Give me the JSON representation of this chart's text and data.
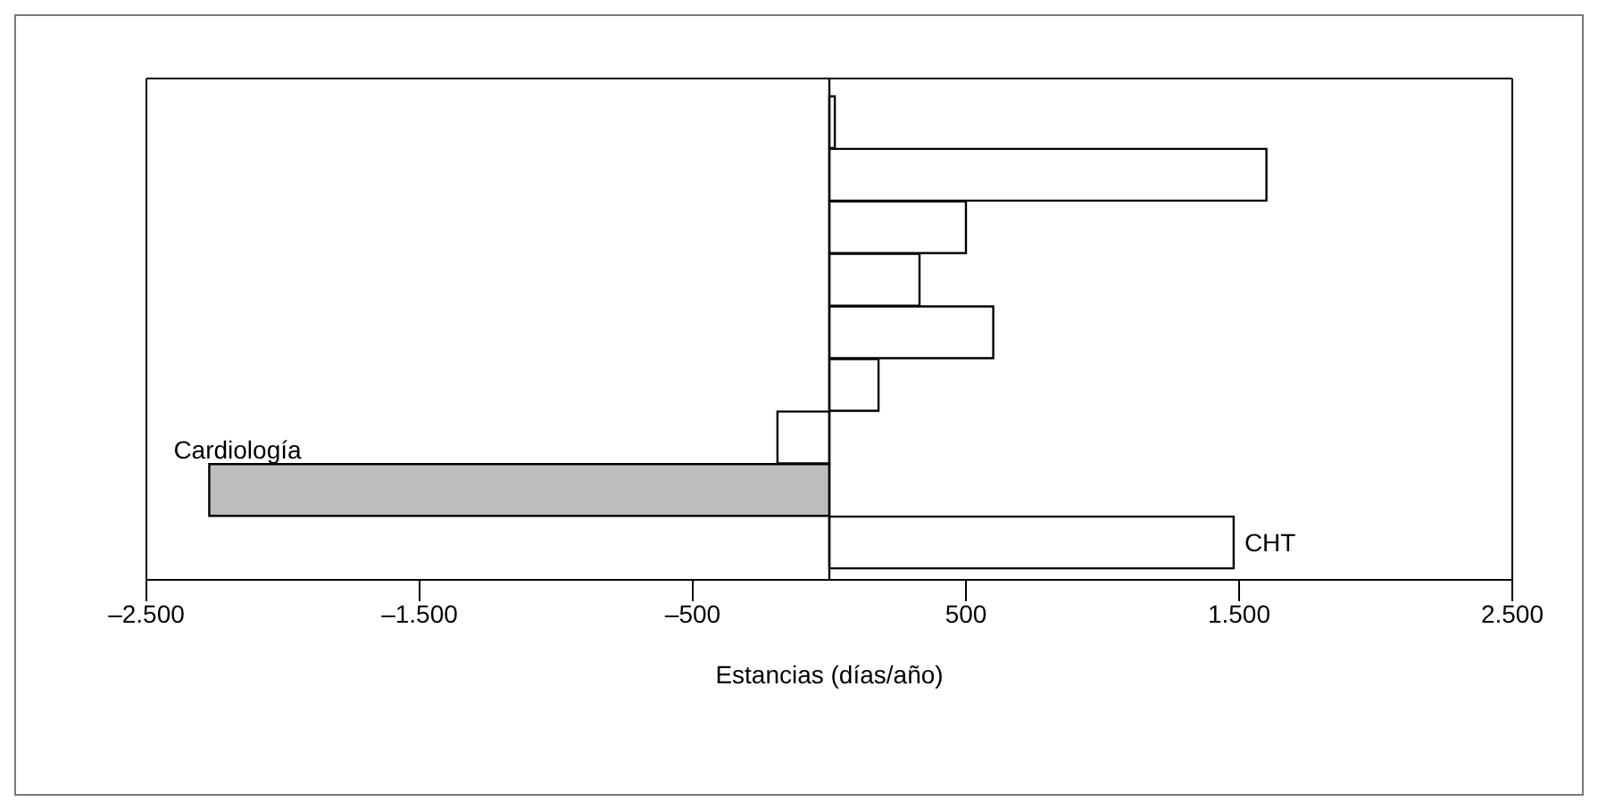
{
  "chart_data": {
    "type": "bar",
    "orientation": "horizontal",
    "xlabel": "Estancias (días/año)",
    "categories": [
      null,
      null,
      null,
      null,
      null,
      null,
      null,
      null,
      null
    ],
    "values": [
      20,
      1600,
      500,
      330,
      600,
      180,
      -190,
      -2270,
      1480
    ],
    "colors": [
      "#ffffff",
      "#ffffff",
      "#ffffff",
      "#ffffff",
      "#ffffff",
      "#ffffff",
      "#ffffff",
      "#bdbdbd",
      "#ffffff"
    ],
    "value_labels": [
      null,
      null,
      null,
      null,
      null,
      null,
      null,
      "Cardiología",
      "CHT"
    ],
    "xlim": [
      -2500,
      2500
    ],
    "xticks": [
      {
        "value": -2500,
        "label": "–2.500"
      },
      {
        "value": -1500,
        "label": "–1.500"
      },
      {
        "value": -500,
        "label": "–500"
      },
      {
        "value": 500,
        "label": "500"
      },
      {
        "value": 1500,
        "label": "1.500"
      },
      {
        "value": 2500,
        "label": "2.500"
      }
    ],
    "ref_lines": [
      {
        "axis": "x",
        "value": 0
      }
    ],
    "grid": false,
    "legend": false
  }
}
